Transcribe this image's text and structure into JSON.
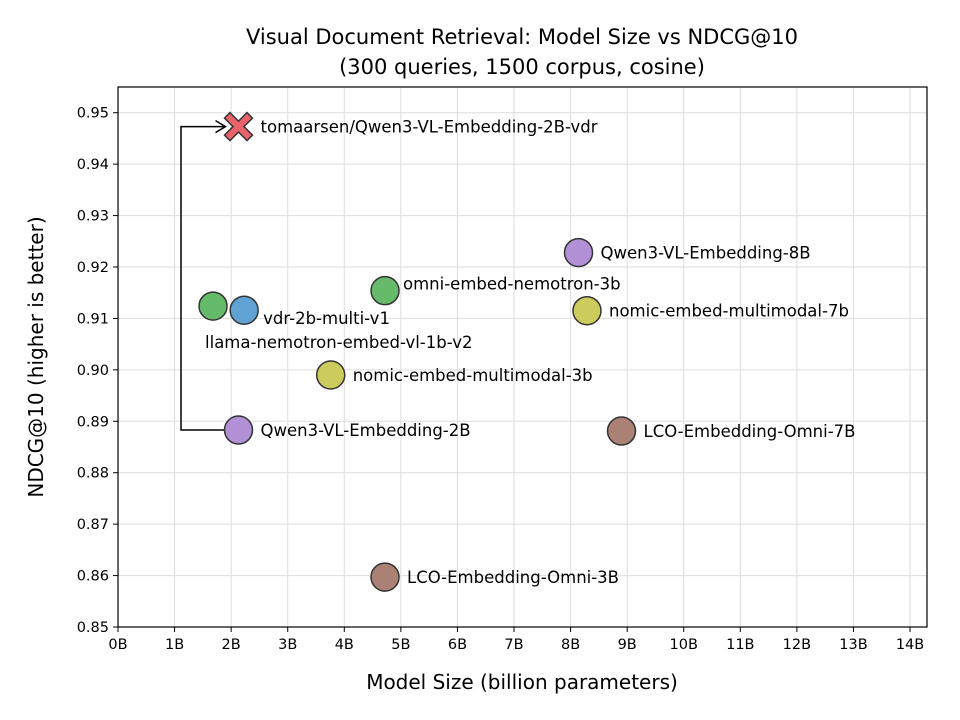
{
  "chart_data": {
    "type": "scatter",
    "title": "Visual Document Retrieval: Model Size vs NDCG@10",
    "subtitle": "(300 queries, 1500 corpus, cosine)",
    "xlabel": "Model Size (billion parameters)",
    "ylabel": "NDCG@10 (higher is better)",
    "xlim": [
      0,
      14.3
    ],
    "ylim": [
      0.85,
      0.955
    ],
    "grid": true,
    "xticks": [
      0,
      1,
      2,
      3,
      4,
      5,
      6,
      7,
      8,
      9,
      10,
      11,
      12,
      13,
      14
    ],
    "xtick_labels": [
      "0B",
      "1B",
      "2B",
      "3B",
      "4B",
      "5B",
      "6B",
      "7B",
      "8B",
      "9B",
      "10B",
      "11B",
      "12B",
      "13B",
      "14B"
    ],
    "yticks": [
      0.85,
      0.86,
      0.87,
      0.88,
      0.89,
      0.9,
      0.91,
      0.92,
      0.93,
      0.94,
      0.95
    ],
    "ytick_labels": [
      "0.85",
      "0.86",
      "0.87",
      "0.88",
      "0.89",
      "0.90",
      "0.91",
      "0.92",
      "0.93",
      "0.94",
      "0.95"
    ],
    "points": [
      {
        "label": "tomaarsen/Qwen3-VL-Embedding-2B-vdr",
        "x": 2.13,
        "y": 0.9473,
        "color": "#e8636b",
        "marker": "x-filled"
      },
      {
        "label": "Qwen3-VL-Embedding-2B",
        "x": 2.13,
        "y": 0.8883,
        "color": "#b290d6",
        "marker": "circle"
      },
      {
        "label": "llama-nemotron-embed-vl-1b-v2",
        "x": 1.68,
        "y": 0.9124,
        "color": "#66bb6a",
        "marker": "circle"
      },
      {
        "label": "vdr-2b-multi-v1",
        "x": 2.23,
        "y": 0.9116,
        "color": "#5fa2d3",
        "marker": "circle"
      },
      {
        "label": "omni-embed-nemotron-3b",
        "x": 4.72,
        "y": 0.9154,
        "color": "#66bb6a",
        "marker": "circle"
      },
      {
        "label": "nomic-embed-multimodal-3b",
        "x": 3.76,
        "y": 0.899,
        "color": "#cccc5c",
        "marker": "circle"
      },
      {
        "label": "LCO-Embedding-Omni-3B",
        "x": 4.72,
        "y": 0.8597,
        "color": "#ab8075",
        "marker": "circle"
      },
      {
        "label": "Qwen3-VL-Embedding-8B",
        "x": 8.14,
        "y": 0.9228,
        "color": "#b290d6",
        "marker": "circle"
      },
      {
        "label": "nomic-embed-multimodal-7b",
        "x": 8.29,
        "y": 0.9115,
        "color": "#cccc5c",
        "marker": "circle"
      },
      {
        "label": "LCO-Embedding-Omni-7B",
        "x": 8.9,
        "y": 0.8881,
        "color": "#ab8075",
        "marker": "circle"
      }
    ],
    "annotation": {
      "type": "arrow",
      "from": "Qwen3-VL-Embedding-2B",
      "to": "tomaarsen/Qwen3-VL-Embedding-2B-vdr"
    }
  }
}
